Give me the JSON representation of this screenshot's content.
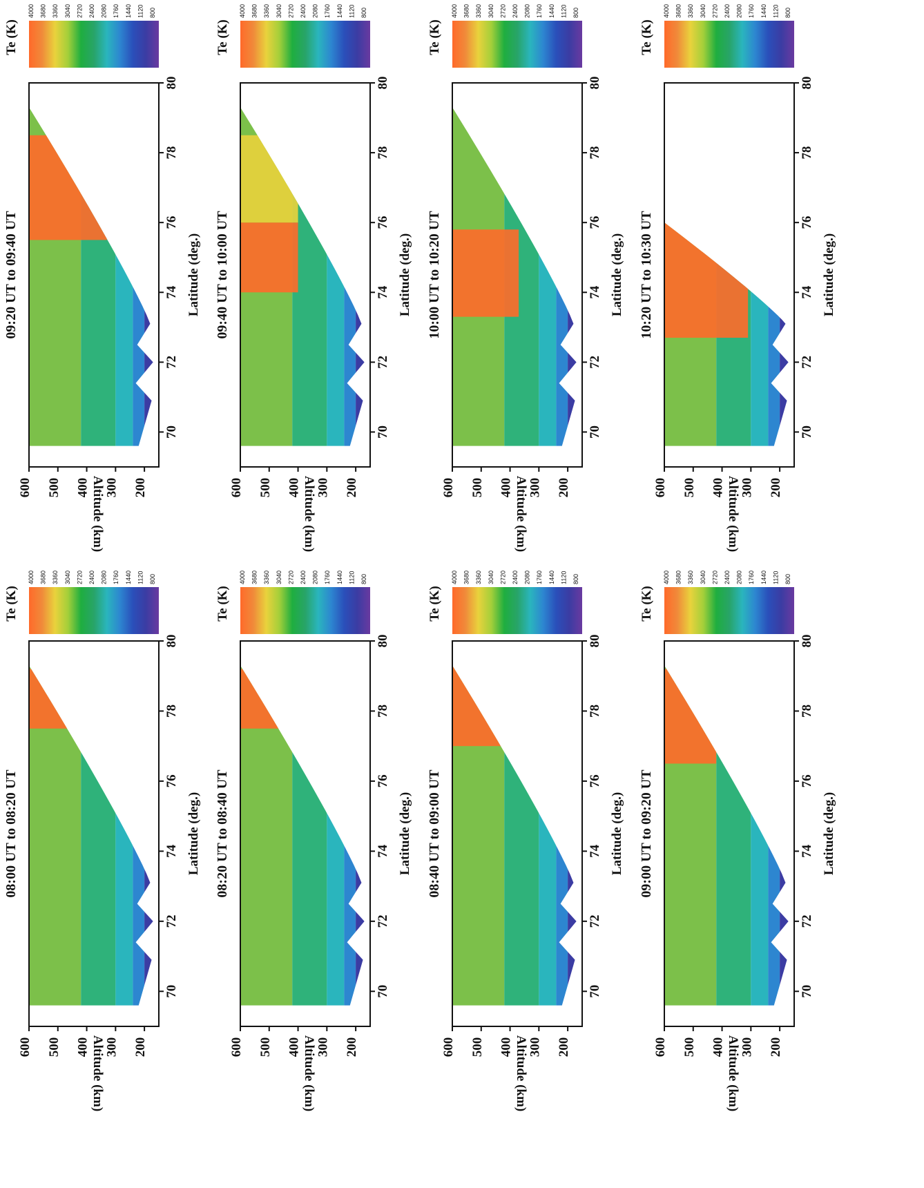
{
  "figure": {
    "colorbar_title": "Te (K)",
    "colorbar_ticks": [
      "4000",
      "3680",
      "3360",
      "3040",
      "2720",
      "2400",
      "2080",
      "1760",
      "1440",
      "1120",
      "800"
    ],
    "colorbar_colors": [
      "#ff6a2a",
      "#f08a3a",
      "#e9d23c",
      "#a4cf3a",
      "#1fae3f",
      "#28a468",
      "#2ab5bd",
      "#2d86d0",
      "#2a4fba",
      "#3b3ca3",
      "#6a3aa0"
    ],
    "xlabel": "Latitude (deg.)",
    "ylabel": "Altitude (km)"
  },
  "chart_data": [
    {
      "type": "heatmap",
      "title": "08:00 UT to 08:20 UT",
      "xlabel": "Latitude (deg.)",
      "ylabel": "Altitude (km)",
      "xlim": [
        69,
        80
      ],
      "ylim": [
        150,
        600
      ],
      "xticks": [
        70,
        72,
        74,
        76,
        78,
        80
      ],
      "yticks": [
        200,
        300,
        400,
        500,
        600
      ],
      "colorbar": {
        "label": "Te (K)",
        "range": [
          800,
          4000
        ]
      },
      "hot_regions": [
        {
          "lat": [
            77.5,
            79.2
          ],
          "alt": [
            350,
            600
          ],
          "te": 3800
        }
      ]
    },
    {
      "type": "heatmap",
      "title": "08:20 UT to 08:40 UT",
      "xlabel": "Latitude (deg.)",
      "ylabel": "Altitude (km)",
      "xlim": [
        69,
        80
      ],
      "ylim": [
        150,
        600
      ],
      "xticks": [
        70,
        72,
        74,
        76,
        78,
        80
      ],
      "yticks": [
        200,
        300,
        400,
        500,
        600
      ],
      "colorbar": {
        "label": "Te (K)",
        "range": [
          800,
          4000
        ]
      },
      "hot_regions": [
        {
          "lat": [
            77.5,
            79.2
          ],
          "alt": [
            380,
            600
          ],
          "te": 3800
        }
      ]
    },
    {
      "type": "heatmap",
      "title": "08:40 UT to 09:00 UT",
      "xlabel": "Latitude (deg.)",
      "ylabel": "Altitude (km)",
      "xlim": [
        69,
        80
      ],
      "ylim": [
        150,
        600
      ],
      "xticks": [
        70,
        72,
        74,
        76,
        78,
        80
      ],
      "yticks": [
        200,
        300,
        400,
        500,
        600
      ],
      "colorbar": {
        "label": "Te (K)",
        "range": [
          800,
          4000
        ]
      },
      "hot_regions": [
        {
          "lat": [
            77.0,
            79.3
          ],
          "alt": [
            380,
            600
          ],
          "te": 3800
        }
      ]
    },
    {
      "type": "heatmap",
      "title": "09:00 UT to 09:20 UT",
      "xlabel": "Latitude (deg.)",
      "ylabel": "Altitude (km)",
      "xlim": [
        69,
        80
      ],
      "ylim": [
        150,
        600
      ],
      "xticks": [
        70,
        72,
        74,
        76,
        78,
        80
      ],
      "yticks": [
        200,
        300,
        400,
        500,
        600
      ],
      "colorbar": {
        "label": "Te (K)",
        "range": [
          800,
          4000
        ]
      },
      "hot_regions": [
        {
          "lat": [
            76.5,
            79.2
          ],
          "alt": [
            420,
            600
          ],
          "te": 3800
        }
      ]
    },
    {
      "type": "heatmap",
      "title": "09:20 UT to 09:40 UT",
      "xlabel": "Latitude (deg.)",
      "ylabel": "Altitude (km)",
      "xlim": [
        69,
        80
      ],
      "ylim": [
        150,
        600
      ],
      "xticks": [
        70,
        72,
        74,
        76,
        78,
        80
      ],
      "yticks": [
        200,
        300,
        400,
        500,
        600
      ],
      "colorbar": {
        "label": "Te (K)",
        "range": [
          800,
          4000
        ]
      },
      "hot_regions": [
        {
          "lat": [
            75.5,
            78.5
          ],
          "alt": [
            330,
            600
          ],
          "te": 3800
        }
      ]
    },
    {
      "type": "heatmap",
      "title": "09:40 UT to 10:00 UT",
      "xlabel": "Latitude (deg.)",
      "ylabel": "Altitude (km)",
      "xlim": [
        69,
        80
      ],
      "ylim": [
        150,
        600
      ],
      "xticks": [
        70,
        72,
        74,
        76,
        78,
        80
      ],
      "yticks": [
        200,
        300,
        400,
        500,
        600
      ],
      "colorbar": {
        "label": "Te (K)",
        "range": [
          800,
          4000
        ]
      },
      "hot_regions": [
        {
          "lat": [
            74.0,
            76.0
          ],
          "alt": [
            400,
            600
          ],
          "te": 3900
        },
        {
          "lat": [
            76.0,
            78.5
          ],
          "alt": [
            400,
            600
          ],
          "te": 3300
        }
      ]
    },
    {
      "type": "heatmap",
      "title": "10:00 UT to 10:20 UT",
      "xlabel": "Latitude (deg.)",
      "ylabel": "Altitude (km)",
      "xlim": [
        69,
        80
      ],
      "ylim": [
        150,
        600
      ],
      "xticks": [
        70,
        72,
        74,
        76,
        78,
        80
      ],
      "yticks": [
        200,
        300,
        400,
        500,
        600
      ],
      "colorbar": {
        "label": "Te (K)",
        "range": [
          800,
          4000
        ]
      },
      "hot_regions": [
        {
          "lat": [
            73.3,
            75.8
          ],
          "alt": [
            370,
            600
          ],
          "te": 3900
        }
      ]
    },
    {
      "type": "heatmap",
      "title": "10:20 UT to 10:30 UT",
      "xlabel": "Latitude (deg.)",
      "ylabel": "Altitude (km)",
      "xlim": [
        69,
        80
      ],
      "ylim": [
        150,
        600
      ],
      "xticks": [
        70,
        72,
        74,
        76,
        78,
        80
      ],
      "yticks": [
        200,
        300,
        400,
        500,
        600
      ],
      "colorbar": {
        "label": "Te (K)",
        "range": [
          800,
          4000
        ]
      },
      "hot_regions": [
        {
          "lat": [
            72.7,
            76.0
          ],
          "alt": [
            310,
            600
          ],
          "te": 3800
        }
      ],
      "coverage_max_lat": 76.0
    }
  ]
}
